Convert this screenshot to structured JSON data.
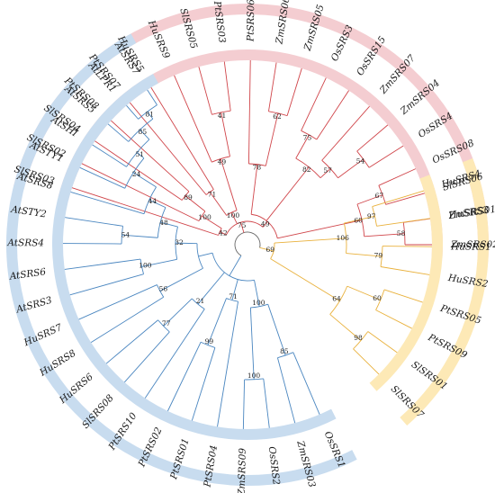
{
  "colors": {
    "red_clade": "#f4cdd1",
    "red_branch": "#d0454a",
    "yellow_clade": "#fde9b6",
    "yellow_branch": "#e9b13c",
    "blue_clade": "#c8dcef",
    "blue_branch": "#4a86c0",
    "neutral_branch": "#666666"
  },
  "clades": [
    {
      "name": "red",
      "leaves": [
        "SlSRS03",
        "SlSRS02",
        "SlSRS04",
        "PtSRS08",
        "PtSRS07",
        "HuSRS5",
        "HuSRS9",
        "SlSRS05",
        "PtSRS03",
        "PtSRS06",
        "ZmSRS06",
        "ZmSRS05",
        "OsSRS3",
        "OsSRS15",
        "ZmSRS07",
        "ZmSRS04",
        "OsSRS4",
        "OsSRS08",
        "SlSRS06",
        "ZmSRS01",
        "ZmSRS02"
      ]
    },
    {
      "name": "yellow",
      "leaves": [
        "HuSRS4",
        "HuSRS3",
        "HuSRS1",
        "HuSRS2",
        "PtSRS05",
        "PtSRS09",
        "SlSRS01",
        "SlSRS07"
      ]
    },
    {
      "name": "blue",
      "leaves": [
        "OsSRS1",
        "ZmSRS03",
        "OsSRS2",
        "ZmSRS09",
        "PtSRS04",
        "PtSRS01",
        "PtSRS02",
        "PtSRS10",
        "SlSRS08",
        "HuSRS6",
        "HuSRS8",
        "HuSRS7",
        "AtSRS3",
        "AtSRS6",
        "AtSRS4",
        "AtSTY2",
        "AtSRS8",
        "AtSTY1",
        "AtSHI",
        "AtSRS5",
        "AtLPR1",
        "AtSRS7"
      ]
    }
  ],
  "bootstrap_values": [
    "89",
    "100",
    "42",
    "71",
    "41",
    "49",
    "100",
    "62",
    "78",
    "75",
    "54",
    "57",
    "82",
    "67",
    "58",
    "60",
    "49",
    "75",
    "97",
    "79",
    "106",
    "60",
    "98",
    "64",
    "69",
    "85",
    "100",
    "100",
    "99",
    "71",
    "77",
    "21",
    "56",
    "100",
    "54",
    "81",
    "85",
    "51",
    "24",
    "44",
    "48",
    "32"
  ]
}
